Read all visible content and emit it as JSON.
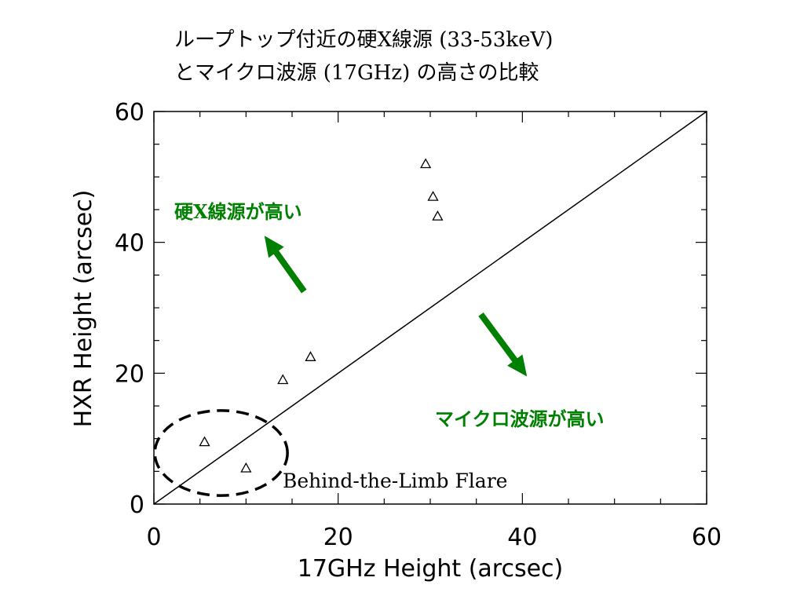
{
  "chart_data": {
    "type": "scatter",
    "title_line1": "ループトップ付近の硬X線源 (33-53keV)",
    "title_line2": "とマイクロ波源 (17GHz) の高さの比較",
    "xlabel": "17GHz Height (arcsec)",
    "ylabel": "HXR Height (arcsec)",
    "xlim": [
      0,
      60
    ],
    "ylim": [
      0,
      60
    ],
    "x_ticks": [
      "0",
      "20",
      "40",
      "60"
    ],
    "y_ticks": [
      "0",
      "20",
      "40",
      "60"
    ],
    "grid": false,
    "marker": "triangle",
    "points": [
      {
        "x": 5.5,
        "y": 9.5
      },
      {
        "x": 10,
        "y": 5.5
      },
      {
        "x": 14,
        "y": 19
      },
      {
        "x": 17,
        "y": 22.5
      },
      {
        "x": 29.5,
        "y": 52
      },
      {
        "x": 30.3,
        "y": 47
      },
      {
        "x": 30.8,
        "y": 44
      }
    ],
    "reference_line": {
      "from": [
        0,
        0
      ],
      "to": [
        60,
        60
      ]
    },
    "annotations": {
      "hxr_higher": "硬X線源が高い",
      "mw_higher": "マイクロ波源が高い",
      "behind_limb": "Behind-the-Limb Flare"
    },
    "arrows": [
      {
        "from": [
          16.3,
          32.5
        ],
        "to": [
          12,
          41
        ]
      },
      {
        "from": [
          35.5,
          29
        ],
        "to": [
          40.5,
          19.5
        ]
      }
    ],
    "ellipse": {
      "center": [
        7.3,
        7.8
      ],
      "rx": 7.2,
      "ry": 6.5
    },
    "colors": {
      "annotation": "#008000",
      "axes": "#000000"
    }
  }
}
